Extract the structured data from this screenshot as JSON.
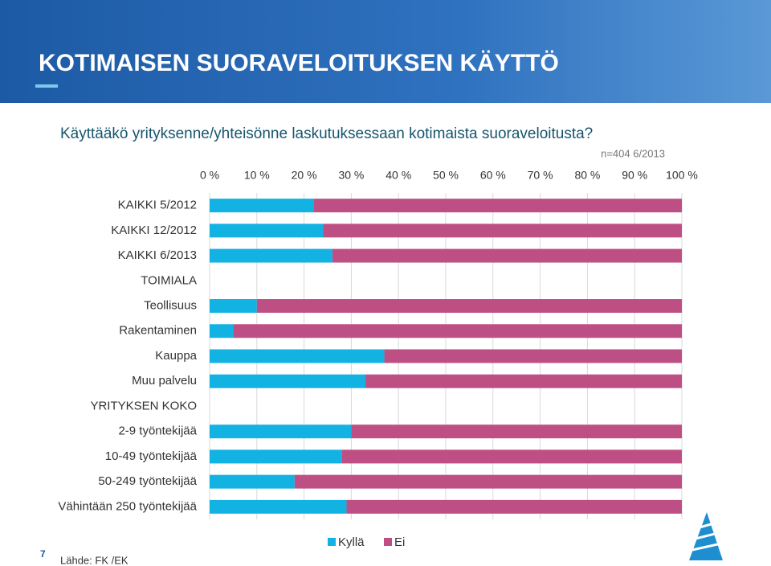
{
  "slide": {
    "title": "KOTIMAISEN SUORAVELOITUKSEN KÄYTTÖ",
    "page_number": "7",
    "source": "Lähde: FK /EK"
  },
  "chart_data": {
    "type": "stacked-bar-horizontal",
    "title": "Käyttääkö yrityksenne/yhteisönne laskutuksessaan kotimaista suoraveloitusta?",
    "annotation": "n=404 6/2013",
    "categories": [
      "KAIKKI 5/2012",
      "KAIKKI 12/2012",
      "KAIKKI 6/2013",
      "TOIMIALA",
      "Teollisuus",
      "Rakentaminen",
      "Kauppa",
      "Muu palvelu",
      "YRITYKSEN KOKO",
      "2-9 työntekijää",
      "10-49 työntekijää",
      "50-249 työntekijää",
      "Vähintään 250 työntekijää"
    ],
    "series": [
      {
        "name": "Kyllä",
        "color": "#12b2e3",
        "values": [
          22,
          24,
          26,
          null,
          10,
          5,
          37,
          33,
          null,
          30,
          28,
          18,
          29
        ]
      },
      {
        "name": "Ei",
        "color": "#be4f84",
        "values": [
          78,
          76,
          74,
          null,
          90,
          95,
          63,
          67,
          null,
          70,
          72,
          82,
          71
        ]
      }
    ],
    "xlim": [
      0,
      100
    ],
    "xticks": [
      {
        "value": 0,
        "label": "0 %"
      },
      {
        "value": 10,
        "label": "10 %"
      },
      {
        "value": 20,
        "label": "20 %"
      },
      {
        "value": 30,
        "label": "30 %"
      },
      {
        "value": 40,
        "label": "40 %"
      },
      {
        "value": 50,
        "label": "50 %"
      },
      {
        "value": 60,
        "label": "60 %"
      },
      {
        "value": 70,
        "label": "70 %"
      },
      {
        "value": 80,
        "label": "80 %"
      },
      {
        "value": 90,
        "label": "90 %"
      },
      {
        "value": 100,
        "label": "100 %"
      }
    ],
    "grid": true,
    "legend": "bottom"
  }
}
